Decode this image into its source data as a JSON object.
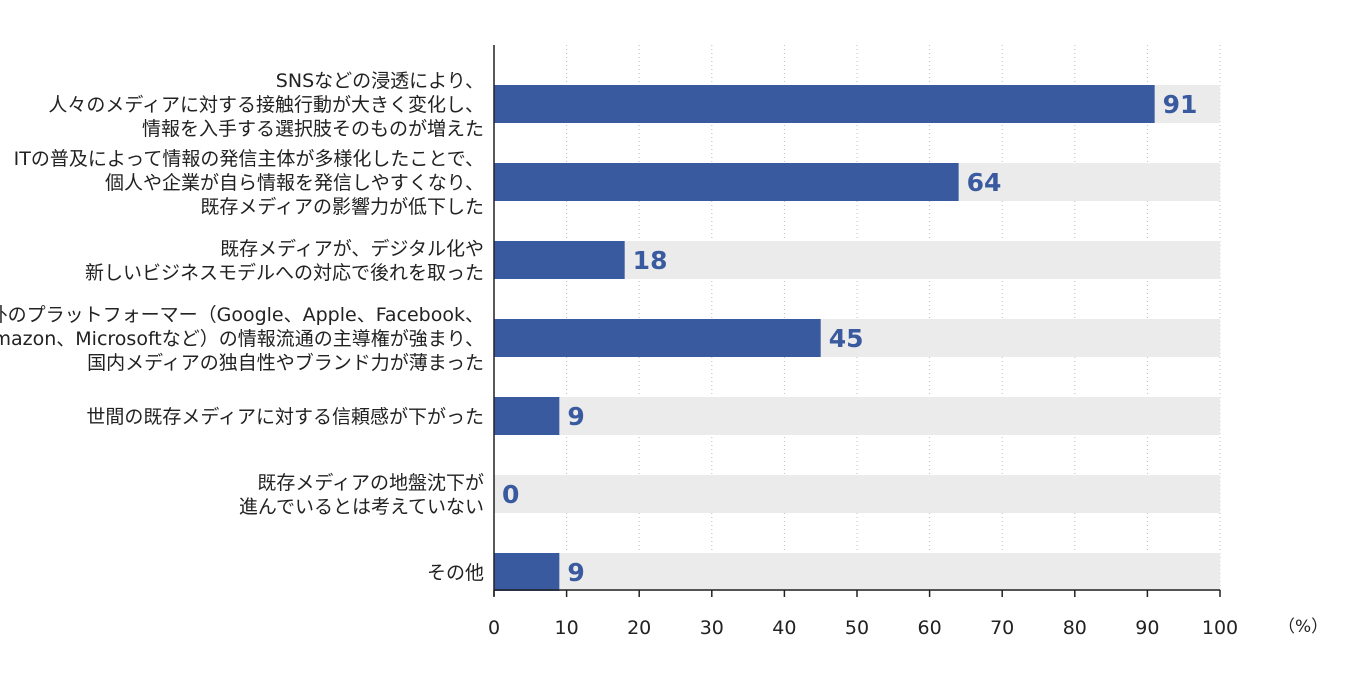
{
  "chart_data": {
    "type": "bar",
    "orientation": "horizontal",
    "categories": [
      [
        "SNSなどの浸透により、",
        "人々のメディアに対する接触行動が大きく変化し、",
        "情報を入手する選択肢そのものが増えた"
      ],
      [
        "ITの普及によって情報の発信主体が多様化したことで、",
        "個人や企業が自ら情報を発信しやすくなり、",
        "既存メディアの影響力が低下した"
      ],
      [
        "既存メディアが、デジタル化や",
        "新しいビジネスモデルへの対応で後れを取った"
      ],
      [
        "海外のプラットフォーマー（Google、Apple、Facebook、",
        "Amazon、Microsoftなど）の情報流通の主導権が強まり、",
        "国内メディアの独自性やブランド力が薄まった"
      ],
      [
        "世間の既存メディアに対する信頼感が下がった"
      ],
      [
        "既存メディアの地盤沈下が",
        "進んでいるとは考えていない"
      ],
      [
        "その他"
      ]
    ],
    "values": [
      91,
      64,
      18,
      45,
      9,
      0,
      9
    ],
    "xlim": [
      0,
      100
    ],
    "xticks": [
      0,
      10,
      20,
      30,
      40,
      50,
      60,
      70,
      80,
      90,
      100
    ],
    "unit": "（%）",
    "grid": true,
    "colors": {
      "bar": "#3a5aa0",
      "track": "#ebebeb",
      "value_text": "#3a5aa0",
      "grid": "#bdbdbd"
    }
  }
}
